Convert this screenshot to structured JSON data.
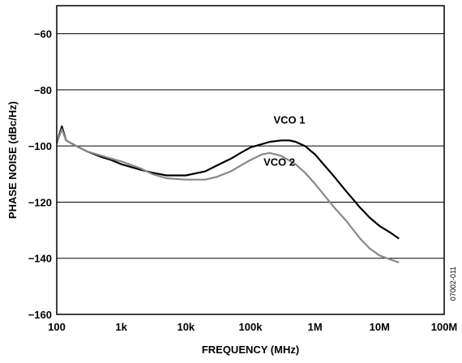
{
  "chart_data": {
    "type": "line",
    "xlabel": "FREQUENCY (MHz)",
    "ylabel": "PHASE NOISE (dBc/Hz)",
    "xscale": "log",
    "xlim": [
      100,
      100000000
    ],
    "ylim": [
      -160,
      -50
    ],
    "xticks": [
      100,
      1000,
      10000,
      100000,
      1000000,
      10000000,
      100000000
    ],
    "xtick_labels": [
      "100",
      "1k",
      "10k",
      "100k",
      "1M",
      "10M",
      "100M"
    ],
    "yticks": [
      -160,
      -140,
      -120,
      -100,
      -80,
      -60
    ],
    "ytick_labels": [
      "−160",
      "−140",
      "−120",
      "−100",
      "−80",
      "−60"
    ],
    "grid": "horizontal",
    "series": [
      {
        "name": "VCO 1",
        "color": "#000000",
        "x": [
          100,
          120,
          140,
          200,
          300,
          500,
          700,
          1000,
          2000,
          3000,
          5000,
          10000,
          20000,
          30000,
          50000,
          70000,
          100000,
          200000,
          300000,
          400000,
          500000,
          700000,
          1000000,
          2000000,
          3000000,
          5000000,
          7000000,
          10000000,
          15000000,
          20000000
        ],
        "y": [
          -99,
          -93,
          -98,
          -100,
          -102,
          -104,
          -105,
          -106.5,
          -108.5,
          -109.5,
          -110.5,
          -110.5,
          -109,
          -107,
          -104.5,
          -102.5,
          -100.5,
          -98.5,
          -98,
          -98,
          -98.5,
          -100,
          -103,
          -111,
          -116,
          -122,
          -125.5,
          -128.5,
          -131,
          -133
        ]
      },
      {
        "name": "VCO 2",
        "color": "#888888",
        "x": [
          100,
          120,
          140,
          200,
          300,
          500,
          700,
          1000,
          2000,
          3000,
          5000,
          10000,
          20000,
          30000,
          50000,
          70000,
          100000,
          150000,
          200000,
          300000,
          500000,
          700000,
          1000000,
          2000000,
          3000000,
          5000000,
          7000000,
          10000000,
          15000000,
          20000000
        ],
        "y": [
          -99,
          -94,
          -98,
          -100,
          -102,
          -103.5,
          -104.5,
          -105.5,
          -108,
          -110,
          -111.5,
          -112,
          -112,
          -111,
          -109,
          -107,
          -105,
          -103,
          -102.5,
          -103.5,
          -106.5,
          -109.5,
          -113.5,
          -122,
          -126.5,
          -133,
          -136.5,
          -139,
          -140.5,
          -141.5
        ]
      }
    ],
    "annotations": [
      {
        "text": "VCO 1",
        "x": 400000,
        "y": -92
      },
      {
        "text": "VCO 2",
        "x": 280000,
        "y": -107
      }
    ],
    "figure_id": "07002-011"
  }
}
